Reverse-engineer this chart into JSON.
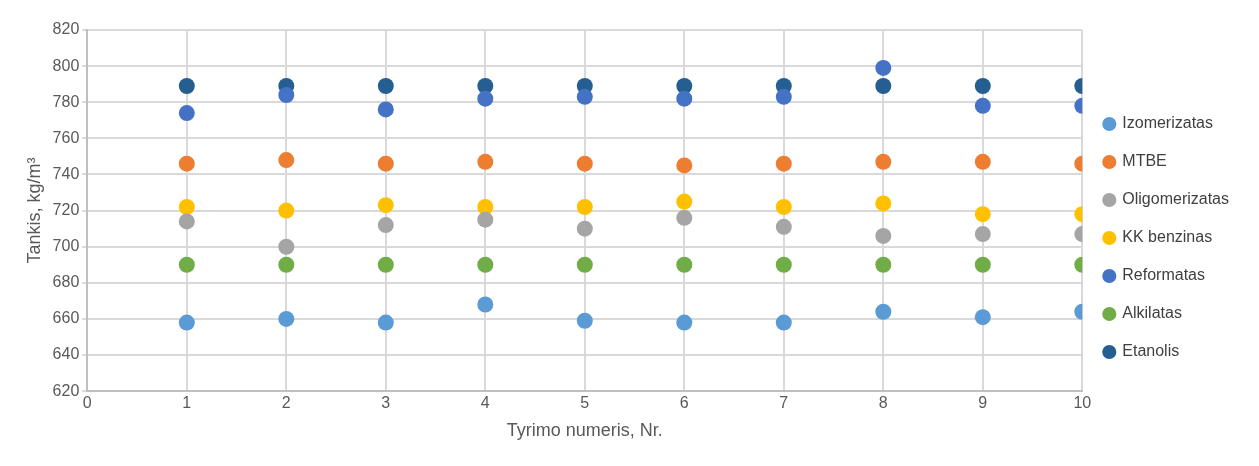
{
  "chart_data": {
    "type": "scatter",
    "xlabel": "Tyrimo numeris, Nr.",
    "ylabel": "Tankis, kg/m³",
    "x": [
      1,
      2,
      3,
      4,
      5,
      6,
      7,
      8,
      9,
      10
    ],
    "xlim": [
      0,
      10
    ],
    "xticks": [
      0,
      1,
      2,
      3,
      4,
      5,
      6,
      7,
      8,
      9,
      10
    ],
    "ylim": [
      620,
      820
    ],
    "yticks": [
      620,
      640,
      660,
      680,
      700,
      720,
      740,
      760,
      780,
      800,
      820
    ],
    "grid": true,
    "legend": "right",
    "marker": "circle",
    "series": [
      {
        "name": "Izomerizatas",
        "color": "#5b9bd5",
        "values": [
          658,
          660,
          658,
          668,
          659,
          658,
          658,
          664,
          661,
          664
        ]
      },
      {
        "name": "MTBE",
        "color": "#ed7d31",
        "values": [
          746,
          748,
          746,
          747,
          746,
          745,
          746,
          747,
          747,
          746
        ]
      },
      {
        "name": "Oligomerizatas",
        "color": "#a5a5a5",
        "values": [
          714,
          700,
          712,
          715,
          710,
          716,
          711,
          706,
          707,
          707
        ]
      },
      {
        "name": "KK benzinas",
        "color": "#ffc000",
        "values": [
          722,
          720,
          723,
          722,
          722,
          725,
          722,
          724,
          718,
          718
        ]
      },
      {
        "name": "Reformatas",
        "color": "#4472c4",
        "values": [
          774,
          784,
          776,
          782,
          783,
          782,
          783,
          799,
          778,
          778
        ]
      },
      {
        "name": "Alkilatas",
        "color": "#70ad47",
        "values": [
          690,
          690,
          690,
          690,
          690,
          690,
          690,
          690,
          690,
          690
        ]
      },
      {
        "name": "Etanolis",
        "color": "#255e91",
        "values": [
          789,
          789,
          789,
          789,
          789,
          789,
          789,
          789,
          789,
          789
        ]
      }
    ]
  }
}
